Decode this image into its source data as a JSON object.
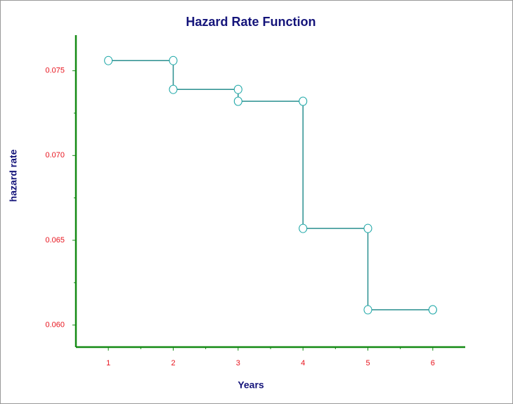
{
  "chart_data": {
    "type": "step",
    "title": "Hazard Rate Function",
    "x_label": "Years",
    "y_label": "hazard rate",
    "x": [
      1,
      2,
      3,
      4,
      5,
      6
    ],
    "series": [
      {
        "color": "#2a8f8f",
        "values": [
          0.0756,
          0.0739,
          0.0732,
          0.0657,
          0.0609,
          0.0609
        ]
      }
    ],
    "xlim": [
      0.5,
      6.5
    ],
    "xticks": [
      1,
      2,
      3,
      4,
      5,
      6
    ],
    "ylim": [
      0.0587,
      0.0771
    ],
    "yticks": [
      {
        "value": 0.06,
        "label": "0.060"
      },
      0.065,
      {
        "value": 0.07,
        "label": "0.070"
      },
      0.075
    ]
  }
}
